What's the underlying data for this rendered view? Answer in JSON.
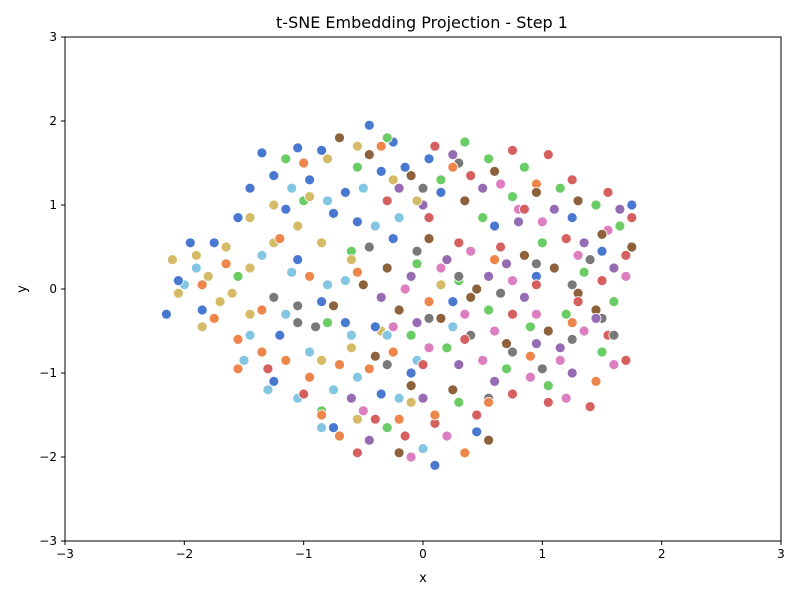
{
  "chart_data": {
    "type": "scatter",
    "title": "t-SNE Embedding Projection - Step 1",
    "xlabel": "x",
    "ylabel": "y",
    "xlim": [
      -3,
      3
    ],
    "ylim": [
      -3,
      3
    ],
    "xticks": [
      -3,
      -2,
      -1,
      0,
      1,
      2,
      3
    ],
    "yticks": [
      -3,
      -2,
      -1,
      0,
      1,
      2,
      3
    ],
    "grid": false,
    "legend": "none",
    "marker_edge_color": "#ffffff",
    "series": [
      {
        "color": "#4878d0",
        "points": [
          [
            -1.35,
            1.62
          ],
          [
            -1.05,
            1.68
          ],
          [
            -0.85,
            1.65
          ],
          [
            -0.45,
            1.95
          ],
          [
            -0.25,
            1.75
          ],
          [
            -1.45,
            1.2
          ],
          [
            -1.25,
            1.35
          ],
          [
            -0.95,
            1.3
          ],
          [
            -0.65,
            1.15
          ],
          [
            -0.35,
            1.4
          ],
          [
            -0.15,
            1.45
          ],
          [
            0.05,
            1.55
          ],
          [
            -1.55,
            0.85
          ],
          [
            -1.15,
            0.95
          ],
          [
            -0.75,
            0.9
          ],
          [
            -0.55,
            0.8
          ],
          [
            -0.25,
            0.6
          ],
          [
            0.15,
            1.15
          ],
          [
            -1.75,
            0.55
          ],
          [
            -1.95,
            0.55
          ],
          [
            -2.05,
            0.1
          ],
          [
            -2.15,
            -0.3
          ],
          [
            -1.85,
            -0.25
          ],
          [
            -1.2,
            -0.55
          ],
          [
            -0.65,
            -0.4
          ],
          [
            -0.4,
            -0.45
          ],
          [
            -1.25,
            -1.1
          ],
          [
            -0.35,
            -1.25
          ],
          [
            -0.1,
            -1.0
          ],
          [
            0.1,
            -2.1
          ],
          [
            -0.75,
            -1.65
          ],
          [
            0.45,
            -1.7
          ],
          [
            0.6,
            0.75
          ],
          [
            0.95,
            0.15
          ],
          [
            1.25,
            0.85
          ],
          [
            1.5,
            0.45
          ],
          [
            1.75,
            1.0
          ],
          [
            0.25,
            -0.15
          ],
          [
            -1.05,
            0.35
          ],
          [
            -0.85,
            -0.15
          ]
        ]
      },
      {
        "color": "#ee854a",
        "points": [
          [
            -1.65,
            0.3
          ],
          [
            -1.75,
            -0.35
          ],
          [
            -1.55,
            -0.6
          ],
          [
            -1.35,
            -0.75
          ],
          [
            -1.55,
            -0.95
          ],
          [
            -1.15,
            -0.85
          ],
          [
            -0.95,
            -1.05
          ],
          [
            -0.7,
            -0.9
          ],
          [
            -0.45,
            -0.95
          ],
          [
            -0.25,
            -0.75
          ],
          [
            -0.85,
            -1.5
          ],
          [
            -0.7,
            -1.75
          ],
          [
            -1.2,
            0.6
          ],
          [
            -0.95,
            0.15
          ],
          [
            -0.55,
            0.2
          ],
          [
            0.05,
            -0.15
          ],
          [
            0.1,
            -1.5
          ],
          [
            0.35,
            -1.95
          ],
          [
            0.55,
            -1.35
          ],
          [
            0.9,
            -0.8
          ],
          [
            1.25,
            -0.4
          ],
          [
            0.6,
            0.35
          ],
          [
            0.95,
            1.25
          ],
          [
            0.25,
            1.45
          ],
          [
            -0.35,
            1.7
          ],
          [
            -1.0,
            1.5
          ],
          [
            -1.35,
            -0.25
          ],
          [
            -1.85,
            0.05
          ],
          [
            -0.2,
            -1.55
          ],
          [
            1.45,
            -1.1
          ]
        ]
      },
      {
        "color": "#6acc64",
        "points": [
          [
            -1.15,
            1.55
          ],
          [
            -0.55,
            1.45
          ],
          [
            -0.3,
            1.8
          ],
          [
            0.15,
            1.3
          ],
          [
            0.35,
            1.75
          ],
          [
            0.55,
            1.55
          ],
          [
            0.85,
            1.45
          ],
          [
            1.15,
            1.2
          ],
          [
            1.45,
            1.0
          ],
          [
            1.65,
            0.75
          ],
          [
            0.75,
            1.1
          ],
          [
            0.5,
            0.85
          ],
          [
            1.0,
            0.55
          ],
          [
            1.35,
            0.2
          ],
          [
            1.6,
            -0.15
          ],
          [
            1.2,
            -0.3
          ],
          [
            0.9,
            -0.45
          ],
          [
            0.55,
            -0.25
          ],
          [
            0.3,
            0.1
          ],
          [
            -0.05,
            0.3
          ],
          [
            -0.6,
            0.45
          ],
          [
            -0.8,
            -0.4
          ],
          [
            -1.55,
            0.15
          ],
          [
            -0.85,
            -1.45
          ],
          [
            -0.3,
            -1.65
          ],
          [
            0.3,
            -1.35
          ],
          [
            0.7,
            -0.95
          ],
          [
            1.05,
            -1.15
          ],
          [
            1.5,
            -0.75
          ],
          [
            0.2,
            -0.7
          ],
          [
            -0.1,
            -0.55
          ],
          [
            -1.0,
            1.05
          ]
        ]
      },
      {
        "color": "#d65f5f",
        "points": [
          [
            0.1,
            1.7
          ],
          [
            0.4,
            1.35
          ],
          [
            0.75,
            1.65
          ],
          [
            1.05,
            1.6
          ],
          [
            1.25,
            1.3
          ],
          [
            1.55,
            1.15
          ],
          [
            1.75,
            0.85
          ],
          [
            1.7,
            0.4
          ],
          [
            1.5,
            0.1
          ],
          [
            1.3,
            -0.15
          ],
          [
            1.55,
            -0.55
          ],
          [
            1.7,
            -0.85
          ],
          [
            1.4,
            -1.4
          ],
          [
            1.05,
            -1.35
          ],
          [
            0.75,
            -1.25
          ],
          [
            0.45,
            -1.5
          ],
          [
            0.1,
            -1.6
          ],
          [
            -0.15,
            -1.75
          ],
          [
            -0.4,
            -1.55
          ],
          [
            -0.55,
            -1.95
          ],
          [
            0.0,
            -0.9
          ],
          [
            0.35,
            -0.6
          ],
          [
            0.75,
            -0.3
          ],
          [
            0.95,
            0.05
          ],
          [
            0.65,
            0.5
          ],
          [
            0.3,
            0.55
          ],
          [
            0.05,
            0.85
          ],
          [
            -0.3,
            1.05
          ],
          [
            -1.0,
            -1.25
          ],
          [
            -1.3,
            -0.95
          ],
          [
            0.85,
            0.95
          ],
          [
            1.2,
            0.6
          ]
        ]
      },
      {
        "color": "#956cb4",
        "points": [
          [
            0.25,
            1.6
          ],
          [
            0.5,
            1.2
          ],
          [
            0.8,
            0.8
          ],
          [
            1.1,
            0.95
          ],
          [
            1.35,
            0.55
          ],
          [
            1.6,
            0.25
          ],
          [
            1.45,
            -0.35
          ],
          [
            1.15,
            -0.7
          ],
          [
            0.85,
            -0.1
          ],
          [
            0.55,
            0.15
          ],
          [
            0.2,
            0.35
          ],
          [
            -0.1,
            0.15
          ],
          [
            -0.35,
            -0.1
          ],
          [
            -0.05,
            -0.4
          ],
          [
            0.3,
            -0.9
          ],
          [
            0.6,
            -1.1
          ],
          [
            0.95,
            -0.65
          ],
          [
            1.25,
            -1.0
          ],
          [
            0.0,
            -1.3
          ],
          [
            -0.45,
            -1.8
          ],
          [
            -0.6,
            -1.3
          ],
          [
            -0.2,
            1.2
          ],
          [
            0.0,
            1.0
          ],
          [
            1.65,
            0.95
          ],
          [
            0.7,
            0.3
          ]
        ]
      },
      {
        "color": "#8c613c",
        "points": [
          [
            -0.7,
            1.8
          ],
          [
            -0.45,
            1.6
          ],
          [
            -0.1,
            1.35
          ],
          [
            0.35,
            1.05
          ],
          [
            0.6,
            1.4
          ],
          [
            0.95,
            1.15
          ],
          [
            1.3,
            1.05
          ],
          [
            1.5,
            0.65
          ],
          [
            1.75,
            0.5
          ],
          [
            1.3,
            -0.05
          ],
          [
            1.05,
            -0.5
          ],
          [
            0.7,
            -0.65
          ],
          [
            0.45,
            0.0
          ],
          [
            0.15,
            -0.35
          ],
          [
            -0.2,
            -0.25
          ],
          [
            -0.5,
            0.05
          ],
          [
            -0.75,
            -0.2
          ],
          [
            -0.4,
            -0.8
          ],
          [
            -0.1,
            -1.15
          ],
          [
            0.25,
            -1.2
          ],
          [
            0.4,
            -0.1
          ],
          [
            0.05,
            0.6
          ],
          [
            -0.3,
            0.25
          ],
          [
            0.85,
            0.4
          ],
          [
            1.1,
            0.25
          ],
          [
            1.45,
            -0.25
          ],
          [
            -0.2,
            -1.95
          ],
          [
            0.55,
            -1.8
          ]
        ]
      },
      {
        "color": "#dc7ec0",
        "points": [
          [
            0.65,
            1.25
          ],
          [
            1.0,
            0.8
          ],
          [
            1.3,
            0.4
          ],
          [
            1.55,
            0.7
          ],
          [
            1.7,
            0.15
          ],
          [
            1.35,
            -0.5
          ],
          [
            1.6,
            -0.9
          ],
          [
            1.2,
            -1.3
          ],
          [
            0.9,
            -1.05
          ],
          [
            0.6,
            -0.5
          ],
          [
            0.35,
            -0.3
          ],
          [
            0.05,
            -0.7
          ],
          [
            -0.25,
            -0.45
          ],
          [
            -0.15,
            0.0
          ],
          [
            0.15,
            0.25
          ],
          [
            0.4,
            0.45
          ],
          [
            0.75,
            0.1
          ],
          [
            0.95,
            -0.3
          ],
          [
            -0.1,
            -2.0
          ],
          [
            0.2,
            -1.75
          ],
          [
            -0.5,
            -1.45
          ],
          [
            0.5,
            -0.85
          ],
          [
            1.15,
            -0.85
          ],
          [
            0.8,
            0.95
          ]
        ]
      },
      {
        "color": "#797979",
        "points": [
          [
            -1.25,
            -0.1
          ],
          [
            -1.05,
            -0.2
          ],
          [
            -0.9,
            -0.45
          ],
          [
            -0.3,
            -0.9
          ],
          [
            0.05,
            -0.35
          ],
          [
            0.4,
            -0.55
          ],
          [
            0.75,
            -0.75
          ],
          [
            1.0,
            -0.95
          ],
          [
            1.25,
            -0.6
          ],
          [
            1.5,
            -0.35
          ],
          [
            1.6,
            -0.55
          ],
          [
            1.25,
            0.05
          ],
          [
            0.95,
            0.3
          ],
          [
            0.65,
            -0.05
          ],
          [
            0.3,
            0.15
          ],
          [
            -0.05,
            0.45
          ],
          [
            0.0,
            1.2
          ],
          [
            0.3,
            1.5
          ],
          [
            -0.45,
            0.5
          ],
          [
            -1.05,
            -0.4
          ],
          [
            1.4,
            0.35
          ],
          [
            0.55,
            -1.3
          ]
        ]
      },
      {
        "color": "#d5bb67",
        "points": [
          [
            -2.1,
            0.35
          ],
          [
            -1.9,
            0.4
          ],
          [
            -1.65,
            0.5
          ],
          [
            -1.45,
            0.25
          ],
          [
            -1.8,
            0.15
          ],
          [
            -2.05,
            -0.05
          ],
          [
            -1.7,
            -0.15
          ],
          [
            -1.45,
            -0.3
          ],
          [
            -1.6,
            -0.05
          ],
          [
            -1.45,
            0.85
          ],
          [
            -1.25,
            1.0
          ],
          [
            -1.05,
            0.75
          ],
          [
            -0.85,
            0.55
          ],
          [
            -0.6,
            0.35
          ],
          [
            -1.25,
            0.55
          ],
          [
            -0.55,
            1.7
          ],
          [
            -0.8,
            1.55
          ],
          [
            -0.25,
            1.3
          ],
          [
            -0.05,
            1.05
          ],
          [
            -1.85,
            -0.45
          ],
          [
            -0.85,
            -0.85
          ],
          [
            -0.6,
            -0.7
          ],
          [
            -0.35,
            -0.5
          ],
          [
            -0.1,
            -1.35
          ],
          [
            -0.55,
            -1.55
          ],
          [
            0.15,
            0.05
          ],
          [
            -0.95,
            1.1
          ]
        ]
      },
      {
        "color": "#82c6e2",
        "points": [
          [
            -1.1,
            1.2
          ],
          [
            -0.8,
            1.05
          ],
          [
            -0.5,
            1.2
          ],
          [
            -0.2,
            0.85
          ],
          [
            -1.35,
            0.4
          ],
          [
            -1.1,
            0.2
          ],
          [
            -0.8,
            0.05
          ],
          [
            -1.15,
            -0.3
          ],
          [
            -0.95,
            -0.75
          ],
          [
            -0.6,
            -0.55
          ],
          [
            -0.3,
            -0.55
          ],
          [
            -0.05,
            -0.85
          ],
          [
            -1.45,
            -0.55
          ],
          [
            -1.3,
            -1.2
          ],
          [
            -1.05,
            -1.3
          ],
          [
            -0.75,
            -1.2
          ],
          [
            -0.55,
            -1.05
          ],
          [
            -0.2,
            -1.3
          ],
          [
            -0.85,
            -1.65
          ],
          [
            -1.9,
            0.25
          ],
          [
            -2.0,
            0.05
          ],
          [
            -0.4,
            0.75
          ],
          [
            0.25,
            -0.45
          ],
          [
            0.0,
            -1.9
          ],
          [
            -0.65,
            0.1
          ],
          [
            -1.5,
            -0.85
          ]
        ]
      }
    ]
  }
}
